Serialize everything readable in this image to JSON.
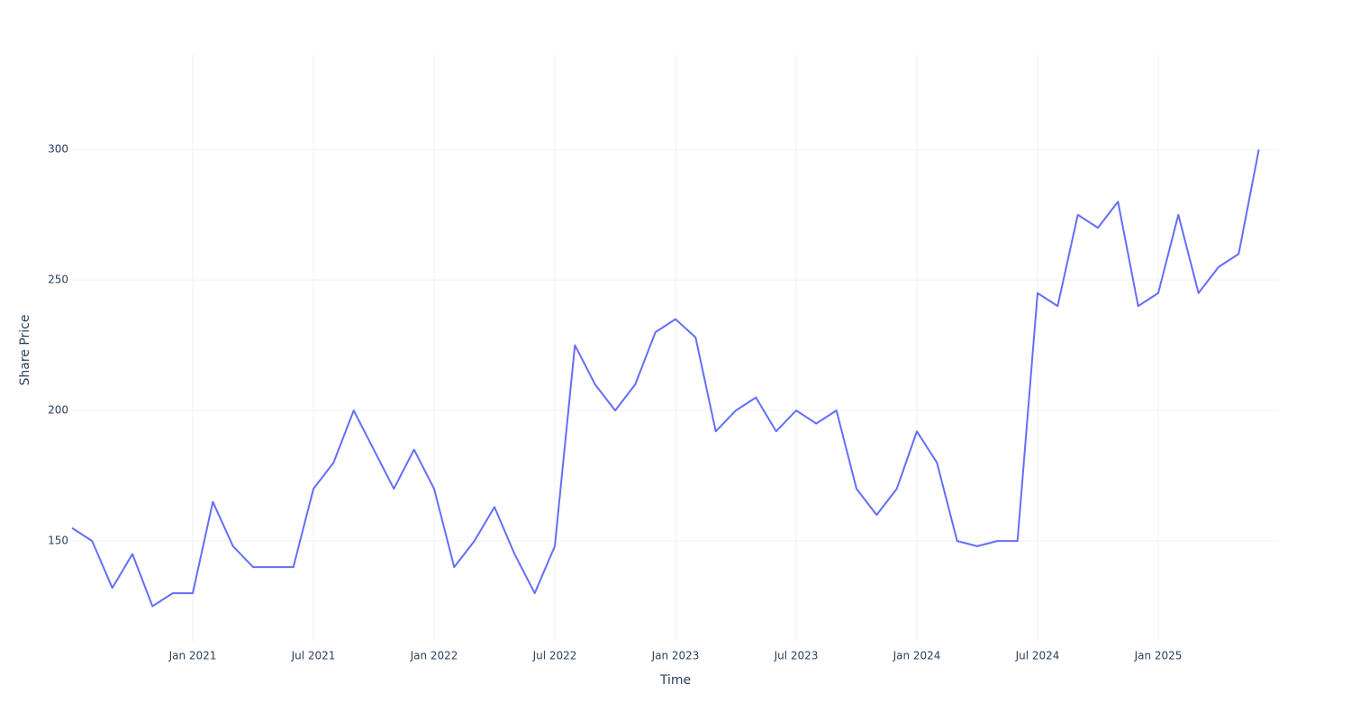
{
  "chart_data": {
    "type": "line",
    "x_label": "Time",
    "y_label": "Share Price",
    "x": [
      "2020-07",
      "2020-08",
      "2020-09",
      "2020-10",
      "2020-11",
      "2020-12",
      "2021-01",
      "2021-02",
      "2021-03",
      "2021-04",
      "2021-05",
      "2021-06",
      "2021-07",
      "2021-08",
      "2021-09",
      "2021-10",
      "2021-11",
      "2021-12",
      "2022-01",
      "2022-02",
      "2022-03",
      "2022-04",
      "2022-05",
      "2022-06",
      "2022-07",
      "2022-08",
      "2022-09",
      "2022-10",
      "2022-11",
      "2022-12",
      "2023-01",
      "2023-02",
      "2023-03",
      "2023-04",
      "2023-05",
      "2023-06",
      "2023-07",
      "2023-08",
      "2023-09",
      "2023-10",
      "2023-11",
      "2023-12",
      "2024-01",
      "2024-02",
      "2024-03",
      "2024-04",
      "2024-05",
      "2024-06",
      "2024-07",
      "2024-08",
      "2024-09",
      "2024-10",
      "2024-11",
      "2024-12",
      "2025-01",
      "2025-02",
      "2025-03",
      "2025-04",
      "2025-05",
      "2025-06"
    ],
    "series": [
      {
        "name": "Share Price",
        "color": "#636efa",
        "values": [
          155,
          150,
          132,
          145,
          125,
          130,
          130,
          165,
          148,
          140,
          140,
          140,
          170,
          180,
          200,
          185,
          170,
          185,
          170,
          140,
          150,
          163,
          145,
          130,
          148,
          225,
          210,
          200,
          210,
          230,
          235,
          228,
          192,
          200,
          205,
          192,
          200,
          195,
          200,
          170,
          160,
          170,
          192,
          180,
          150,
          148,
          150,
          150,
          245,
          240,
          275,
          270,
          280,
          240,
          245,
          275,
          245,
          255,
          260,
          300
        ]
      }
    ],
    "xlim": [
      "2020-07",
      "2025-07"
    ],
    "xticks": [
      {
        "value": "2021-01",
        "label": "Jan 2021"
      },
      {
        "value": "2021-07",
        "label": "Jul 2021"
      },
      {
        "value": "2022-01",
        "label": "Jan 2022"
      },
      {
        "value": "2022-07",
        "label": "Jul 2022"
      },
      {
        "value": "2023-01",
        "label": "Jan 2023"
      },
      {
        "value": "2023-07",
        "label": "Jul 2023"
      },
      {
        "value": "2024-01",
        "label": "Jan 2024"
      },
      {
        "value": "2024-07",
        "label": "Jul 2024"
      },
      {
        "value": "2025-01",
        "label": "Jan 2025"
      }
    ],
    "ylim": [
      111.4,
      336.6
    ],
    "yticks": [
      150,
      200,
      250,
      300
    ],
    "grid": true
  }
}
